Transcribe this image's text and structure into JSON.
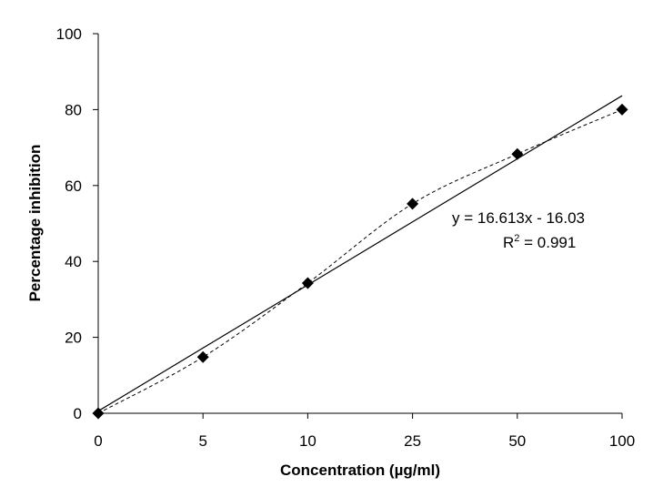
{
  "chart_data": {
    "type": "scatter",
    "xlabel": "Concentration  (µg/ml)",
    "ylabel": "Percentage inhibition",
    "categories": [
      "0",
      "5",
      "10",
      "25",
      "50",
      "100"
    ],
    "values": [
      0,
      14.8,
      34.3,
      55.2,
      68.3,
      80.0
    ],
    "ylim": [
      0,
      100
    ],
    "yticks": [
      "0",
      "20",
      "40",
      "60",
      "80",
      "100"
    ],
    "series_style": {
      "marker": "diamond",
      "connector": "dashed"
    },
    "trendline": {
      "type": "linear",
      "slope": 16.613,
      "intercept": -16.03,
      "equation": "y = 16.613x - 16.03",
      "r2_label": "R",
      "r2_sup": "2",
      "r2_value": " = 0.991"
    },
    "grid": false,
    "legend": "none"
  }
}
